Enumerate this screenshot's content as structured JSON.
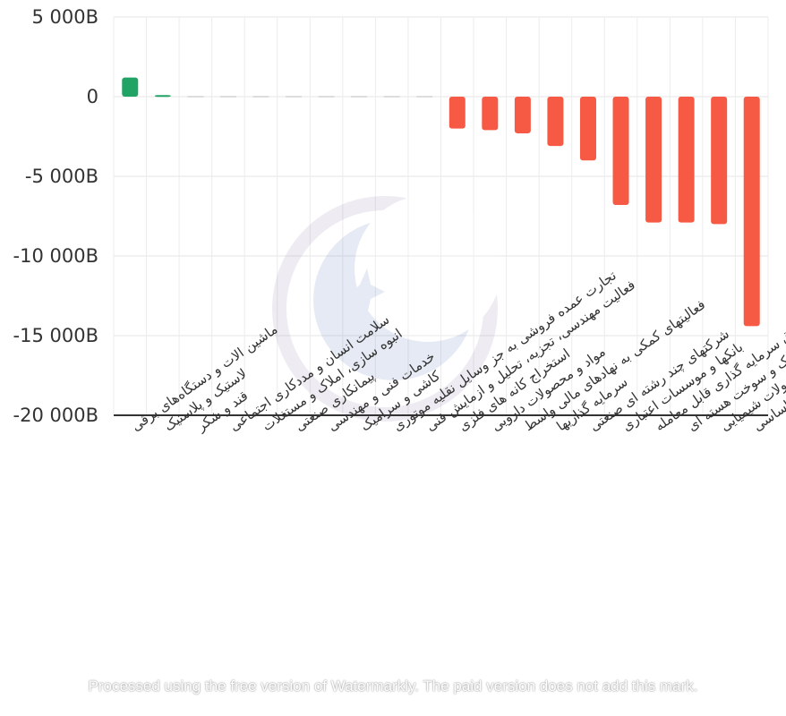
{
  "chart_data": {
    "type": "bar",
    "categories": [
      "ماشین الات و دستگاه‌های برقی",
      "لاستیک و پلاستیک",
      "قند و شکر",
      "سلامت انسان و مددکاری اجتماعی",
      "انبوه سازی، املاک و مستغلات",
      "پیمانکاری صنعتی",
      "خدمات فنی و مهندسی",
      "کاشی و سرامیک",
      "تجارت عمده فروشی به جز وسایل نقلیه موتوری",
      "فعالیت مهندسی، تجزیه، تحلیل و ازمایش فنی",
      "استخراج کانه های فلزی",
      "مواد و محصولات دارویی",
      "فعالیتهای کمکی به نهادهای مالی واسط",
      "سرمایه گذاریها",
      "شرکتهای چند رشته ای صنعتی",
      "بانکها و موسسات اعتباری",
      "صندوق سرمایه گذاری قابل معامله",
      "فراورده های نفتی، کک و سوخت هسته ای",
      "محصولات شیمیایی",
      "فلزات اساسی"
    ],
    "values": [
      1200,
      100,
      0,
      0,
      0,
      0,
      0,
      0,
      0,
      0,
      -2000,
      -2100,
      -2300,
      -3100,
      -4000,
      -6800,
      -7900,
      -7900,
      -8000,
      -14400
    ],
    "ylim": [
      -20000,
      5000
    ],
    "yticks": [
      5000,
      0,
      -5000,
      -10000,
      -15000,
      -20000
    ],
    "ytick_labels": [
      "5 000B",
      "0",
      "-5 000B",
      "-10 000B",
      "-15 000B",
      "-20 000B"
    ],
    "positive_color": "#21a366",
    "negative_color": "#f75a44",
    "grid": true
  },
  "watermark": {
    "logo_icon": "crescent-star-logo-icon",
    "note": "Processed using the free version of Watermarkly. The paid version does not add this mark."
  }
}
